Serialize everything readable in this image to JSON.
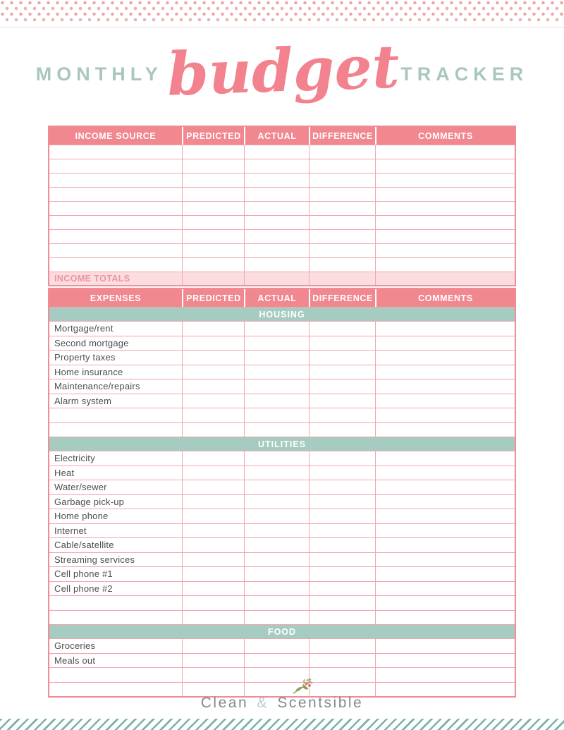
{
  "title": {
    "word1": "MONTHLY",
    "word2": "budget",
    "word3": "TRACKER"
  },
  "income_table": {
    "headers": [
      "INCOME SOURCE",
      "PREDICTED",
      "ACTUAL",
      "DIFFERENCE",
      "COMMENTS"
    ],
    "empty_row_count": 9,
    "totals_label": "INCOME TOTALS"
  },
  "expense_table": {
    "headers": [
      "EXPENSES",
      "PREDICTED",
      "ACTUAL",
      "DIFFERENCE",
      "COMMENTS"
    ],
    "sections": [
      {
        "name": "HOUSING",
        "items": [
          "Mortgage/rent",
          "Second mortgage",
          "Property taxes",
          "Home insurance",
          "Maintenance/repairs",
          "Alarm system",
          "",
          ""
        ]
      },
      {
        "name": "UTILITIES",
        "items": [
          "Electricity",
          "Heat",
          "Water/sewer",
          "Garbage pick-up",
          "Home phone",
          "Internet",
          "Cable/satellite",
          "Streaming services",
          "Cell phone #1",
          "Cell phone #2",
          "",
          ""
        ]
      },
      {
        "name": "FOOD",
        "items": [
          "Groceries",
          "Meals out",
          "",
          ""
        ]
      }
    ]
  },
  "footer": {
    "brand_part1": "Clean",
    "brand_amp": "&",
    "brand_part2": "Scentsible",
    "icon": "floral-sprig-icon"
  },
  "colors": {
    "header_pink": "#f1878f",
    "grid_pink": "#f2a5ab",
    "outer_border_pink": "#ee8d95",
    "section_teal": "#a6ccc2",
    "totals_bg": "#fbdce0",
    "totals_text": "#ec95a0",
    "title_teal": "#a9c7be",
    "title_script_pink": "#f2828d",
    "label_gray": "#4d4e50",
    "footer_gray": "#84898e",
    "footer_amp_blue": "#b5cdd6",
    "dot_pink": "#eda6a6",
    "stripe_teal": "#7cb1a6"
  }
}
